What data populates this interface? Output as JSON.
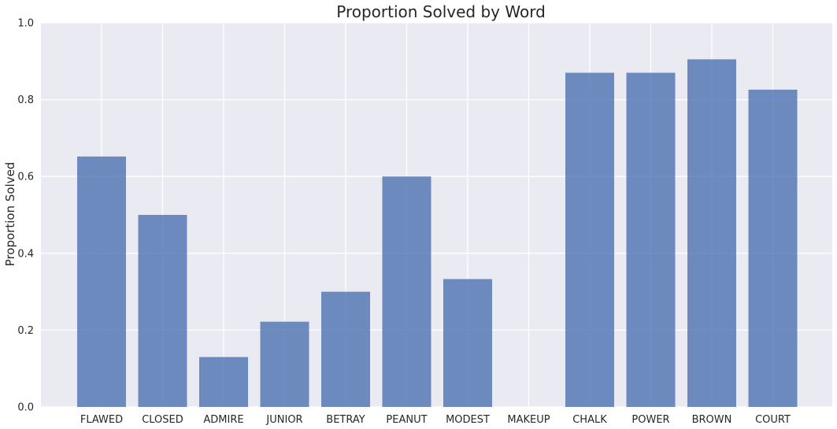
{
  "chart_data": {
    "type": "bar",
    "title": "Proportion Solved by Word",
    "xlabel": "",
    "ylabel": "Proportion Solved",
    "categories": [
      "FLAWED",
      "CLOSED",
      "ADMIRE",
      "JUNIOR",
      "BETRAY",
      "PEANUT",
      "MODEST",
      "MAKEUP",
      "CHALK",
      "POWER",
      "BROWN",
      "COURT"
    ],
    "values": [
      0.652,
      0.5,
      0.13,
      0.222,
      0.3,
      0.6,
      0.333,
      0.0,
      0.87,
      0.87,
      0.905,
      0.826
    ],
    "ylim": [
      0,
      1.0
    ],
    "yticks": [
      0.0,
      0.2,
      0.4,
      0.6,
      0.8,
      1.0
    ],
    "ytick_labels": [
      "0.0",
      "0.2",
      "0.4",
      "0.6",
      "0.8",
      "1.0"
    ],
    "grid": true,
    "colors": {
      "bar": "#4c72b0",
      "background": "#eaeaf2",
      "grid": "#ffffff"
    }
  }
}
